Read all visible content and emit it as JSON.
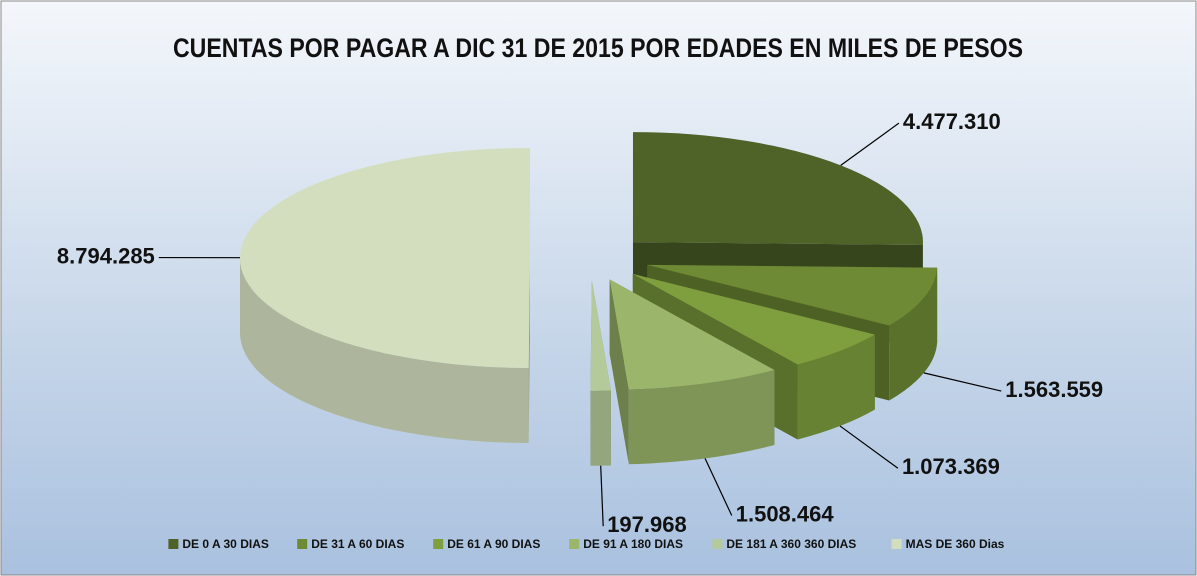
{
  "chart_data": {
    "type": "pie",
    "title": "CUENTAS POR PAGAR A DIC 31 DE 2015 POR EDADES EN MILES DE PESOS",
    "categories": [
      "DE 0 A 30 DIAS",
      "DE 31 A 60 DIAS",
      "DE 61 A 90 DIAS",
      "DE 91 A 180 DIAS",
      "DE 181 A 360 360 DIAS",
      "MAS DE 360 Dias"
    ],
    "values": [
      4477310,
      1563559,
      1073369,
      1508464,
      197968,
      8794285
    ],
    "value_labels": [
      "4.477.310",
      "1.563.559",
      "1.073.369",
      "1.508.464",
      "197.968",
      "8.794.285"
    ],
    "colors": [
      "#4f6228",
      "#6e8a35",
      "#7f9f3f",
      "#9bb56a",
      "#b5ca9a",
      "#d3deBE"
    ],
    "legend": "bottom"
  }
}
